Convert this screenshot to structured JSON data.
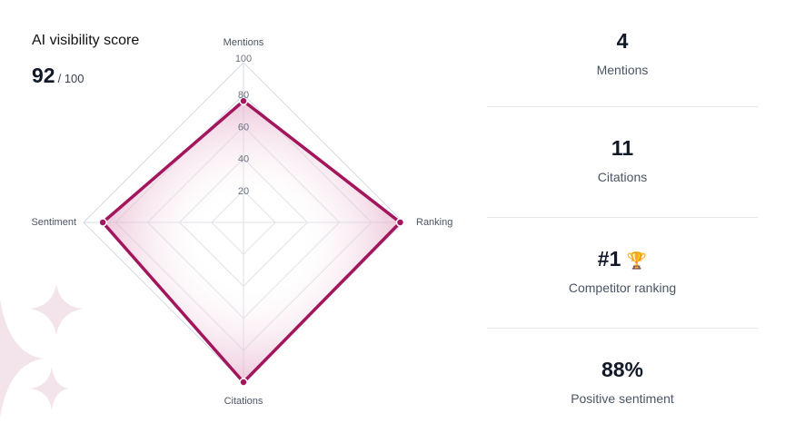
{
  "header": {
    "title": "AI visibility score",
    "score": "92",
    "score_max": "/ 100"
  },
  "chart_data": {
    "type": "radar",
    "axes": [
      "Mentions",
      "Ranking",
      "Citations",
      "Sentiment"
    ],
    "values": [
      76,
      98,
      100,
      88
    ],
    "ticks": [
      "20",
      "40",
      "60",
      "80",
      "100"
    ],
    "range": [
      0,
      100
    ],
    "colors": {
      "line": "#a3155c",
      "fill": "#e8b8cf",
      "grid": "#d5dbe5"
    }
  },
  "stats": [
    {
      "value": "4",
      "label": "Mentions"
    },
    {
      "value": "11",
      "label": "Citations"
    },
    {
      "value": "#1",
      "label": "Competitor ranking",
      "icon": "trophy-icon"
    },
    {
      "value": "88%",
      "label": "Positive sentiment"
    }
  ]
}
